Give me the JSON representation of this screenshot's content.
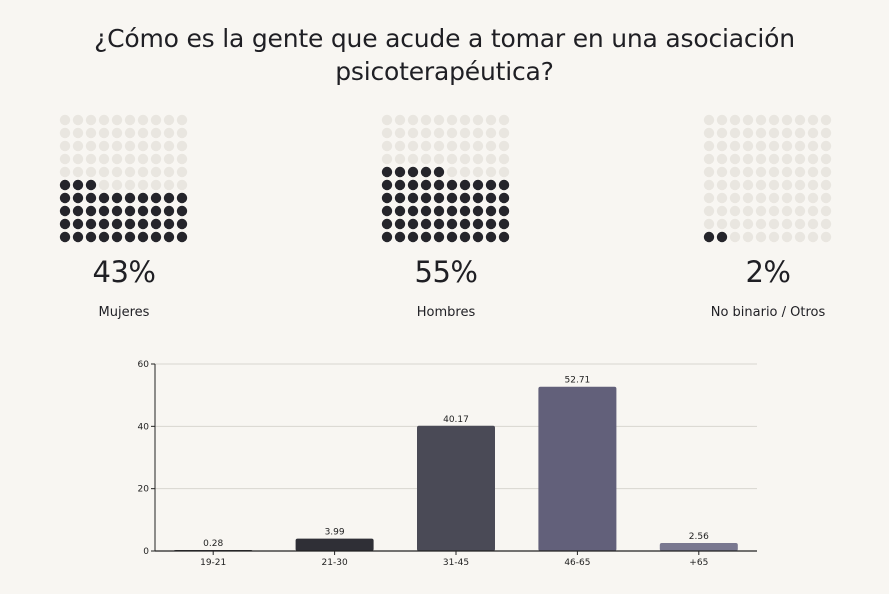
{
  "title": "¿Cómo es la gente que acude a tomar en una asociación psicoterapéutica?",
  "waffles": [
    {
      "percent_label": "43%",
      "label": "Mujeres",
      "value": 43
    },
    {
      "percent_label": "55%",
      "label": "Hombres",
      "value": 55
    },
    {
      "percent_label": "2%",
      "label": "No binario / Otros",
      "value": 2
    }
  ],
  "colors": {
    "filled_dot": "#25252b",
    "empty_dot": "#e9e6e0",
    "background": "#f8f6f2"
  },
  "chart_data": {
    "type": "bar",
    "categories": [
      "19-21",
      "21-30",
      "31-45",
      "46-65",
      "+65"
    ],
    "values": [
      0.28,
      3.99,
      40.17,
      52.71,
      2.56
    ],
    "value_labels": [
      "0.28",
      "3.99",
      "40.17",
      "52.71",
      "2.56"
    ],
    "colors": [
      "#2c2c32",
      "#2f2f36",
      "#4a4a56",
      "#62607a",
      "#7a7890"
    ],
    "ylim": [
      0,
      60
    ],
    "yticks": [
      0,
      20,
      40,
      60
    ],
    "title": "",
    "xlabel": "",
    "ylabel": "",
    "grid": true
  }
}
